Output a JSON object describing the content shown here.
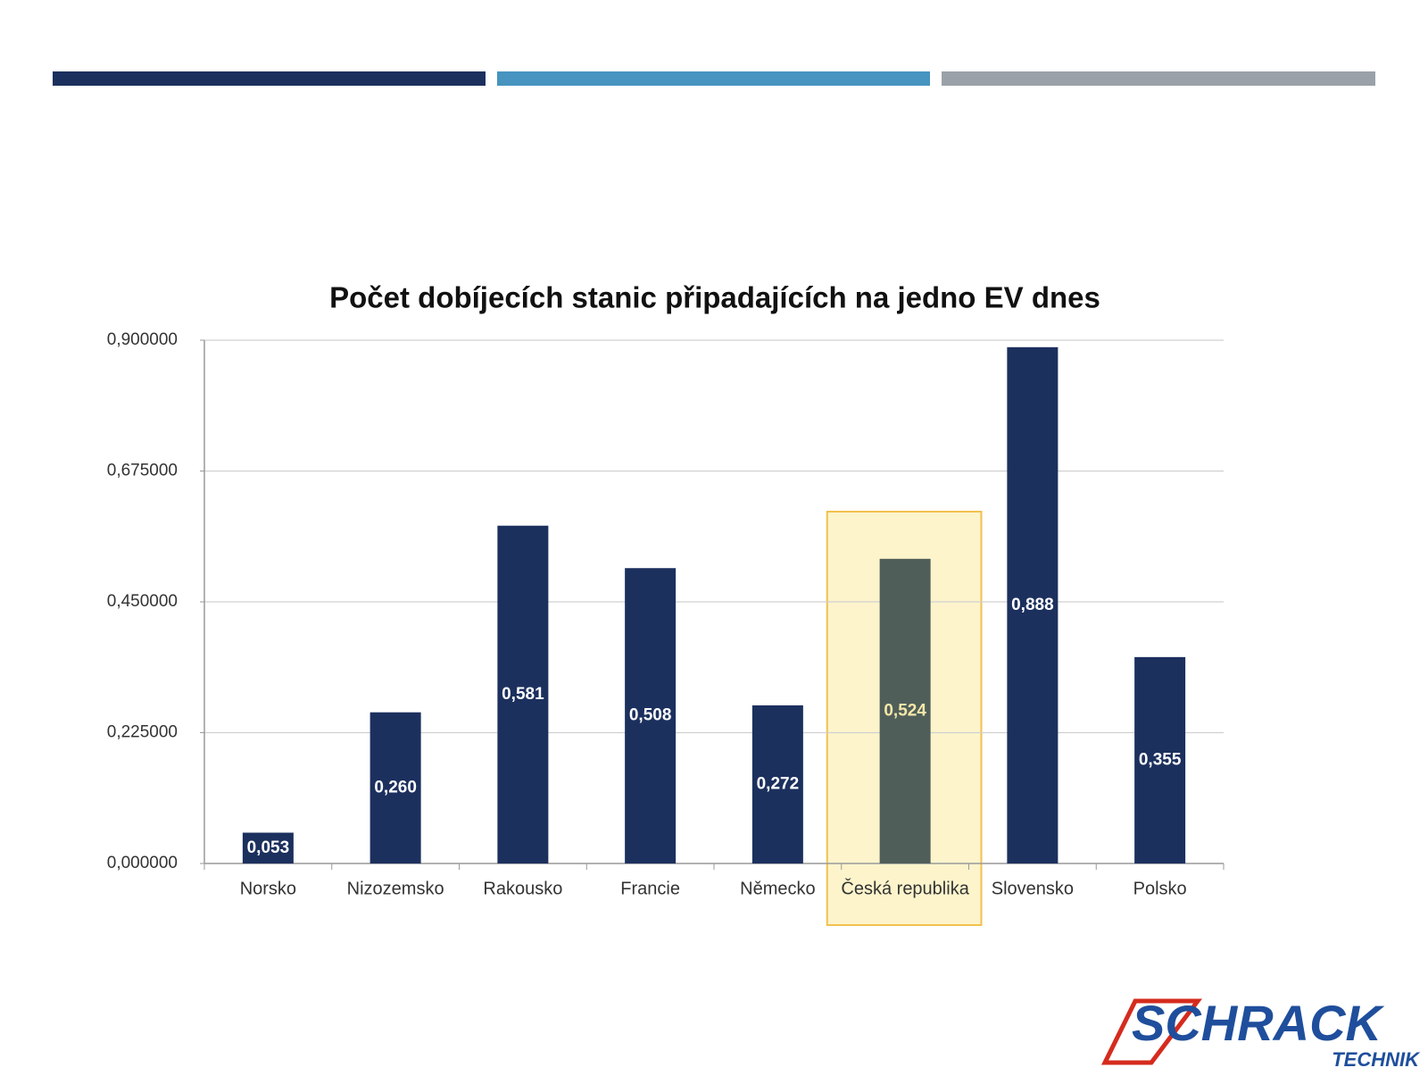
{
  "chart_data": {
    "type": "bar",
    "title": "Počet dobíjecích stanic připadajících na jedno EV dnes",
    "categories": [
      "Norsko",
      "Nizozemsko",
      "Rakousko",
      "Francie",
      "Německo",
      "Česká republika",
      "Slovensko",
      "Polsko"
    ],
    "values": [
      0.053,
      0.26,
      0.581,
      0.508,
      0.272,
      0.524,
      0.888,
      0.355
    ],
    "value_labels": [
      "0,053",
      "0,260",
      "0,581",
      "0,508",
      "0,272",
      "0,524",
      "0,888",
      "0,355"
    ],
    "color": "#1c305e",
    "highlight_index": 5,
    "highlight_color": "#505e5a",
    "highlight_box_color": "#fdf4cc",
    "ylim": [
      0,
      0.9
    ],
    "yticks": [
      {
        "value": 0,
        "label": "0,000000"
      },
      {
        "value": 0.225,
        "label": "0,225000"
      },
      {
        "value": 0.45,
        "label": "0,450000"
      },
      {
        "value": 0.675,
        "label": "0,675000"
      },
      {
        "value": 0.9,
        "label": "0,900000"
      }
    ],
    "grid": true
  },
  "logo": {
    "name": "SCHRACK",
    "subtitle": "TECHNIK"
  }
}
